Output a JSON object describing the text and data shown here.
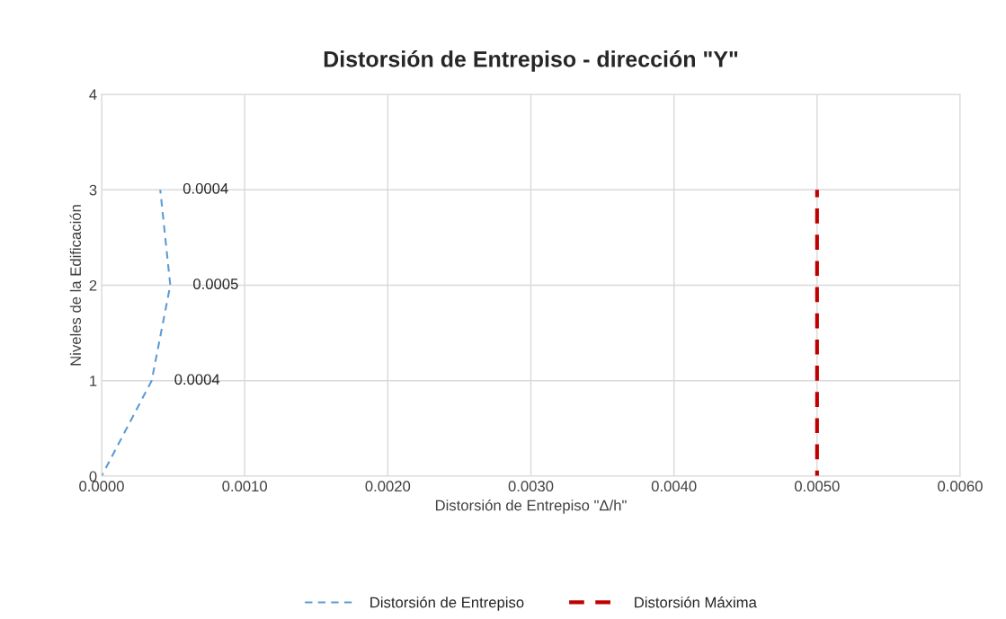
{
  "chart_data": {
    "type": "line",
    "title": "Distorsión de Entrepiso - dirección \"Y\"",
    "xlabel": "Distorsión de Entrepiso \"Δ/h\"",
    "ylabel": "Niveles de la Edificación",
    "series": [
      {
        "name": "Distorsión de Entrepiso",
        "color": "#5b9bd5",
        "x": [
          0.0,
          0.00035,
          0.00048,
          0.00041
        ],
        "values": [
          0,
          1,
          2,
          3
        ],
        "line_style": "dashed"
      },
      {
        "name": "Distorsión Máxima",
        "color": "#c00000",
        "x": [
          0.005,
          0.005
        ],
        "values": [
          0,
          3
        ],
        "line_style": "dashed"
      }
    ],
    "xlim": [
      0,
      0.006
    ],
    "xticks": [
      {
        "value": 0,
        "label": "0.0000"
      },
      {
        "value": 0.001,
        "label": "0.0010"
      },
      {
        "value": 0.002,
        "label": "0.0020"
      },
      {
        "value": 0.003,
        "label": "0.0030"
      },
      {
        "value": 0.004,
        "label": "0.0040"
      },
      {
        "value": 0.005,
        "label": "0.0050"
      },
      {
        "value": 0.006,
        "label": "0.0060"
      }
    ],
    "annotations": [
      {
        "text": "0.0004",
        "x": 0.00035,
        "y": 1
      },
      {
        "text": "0.0005",
        "x": 0.00048,
        "y": 2
      },
      {
        "text": "0.0004",
        "x": 0.00041,
        "y": 3
      }
    ],
    "ylim": [
      0,
      4
    ],
    "yticks": [
      0,
      1,
      2,
      3,
      4
    ],
    "grid": true,
    "legend": "bottom"
  }
}
